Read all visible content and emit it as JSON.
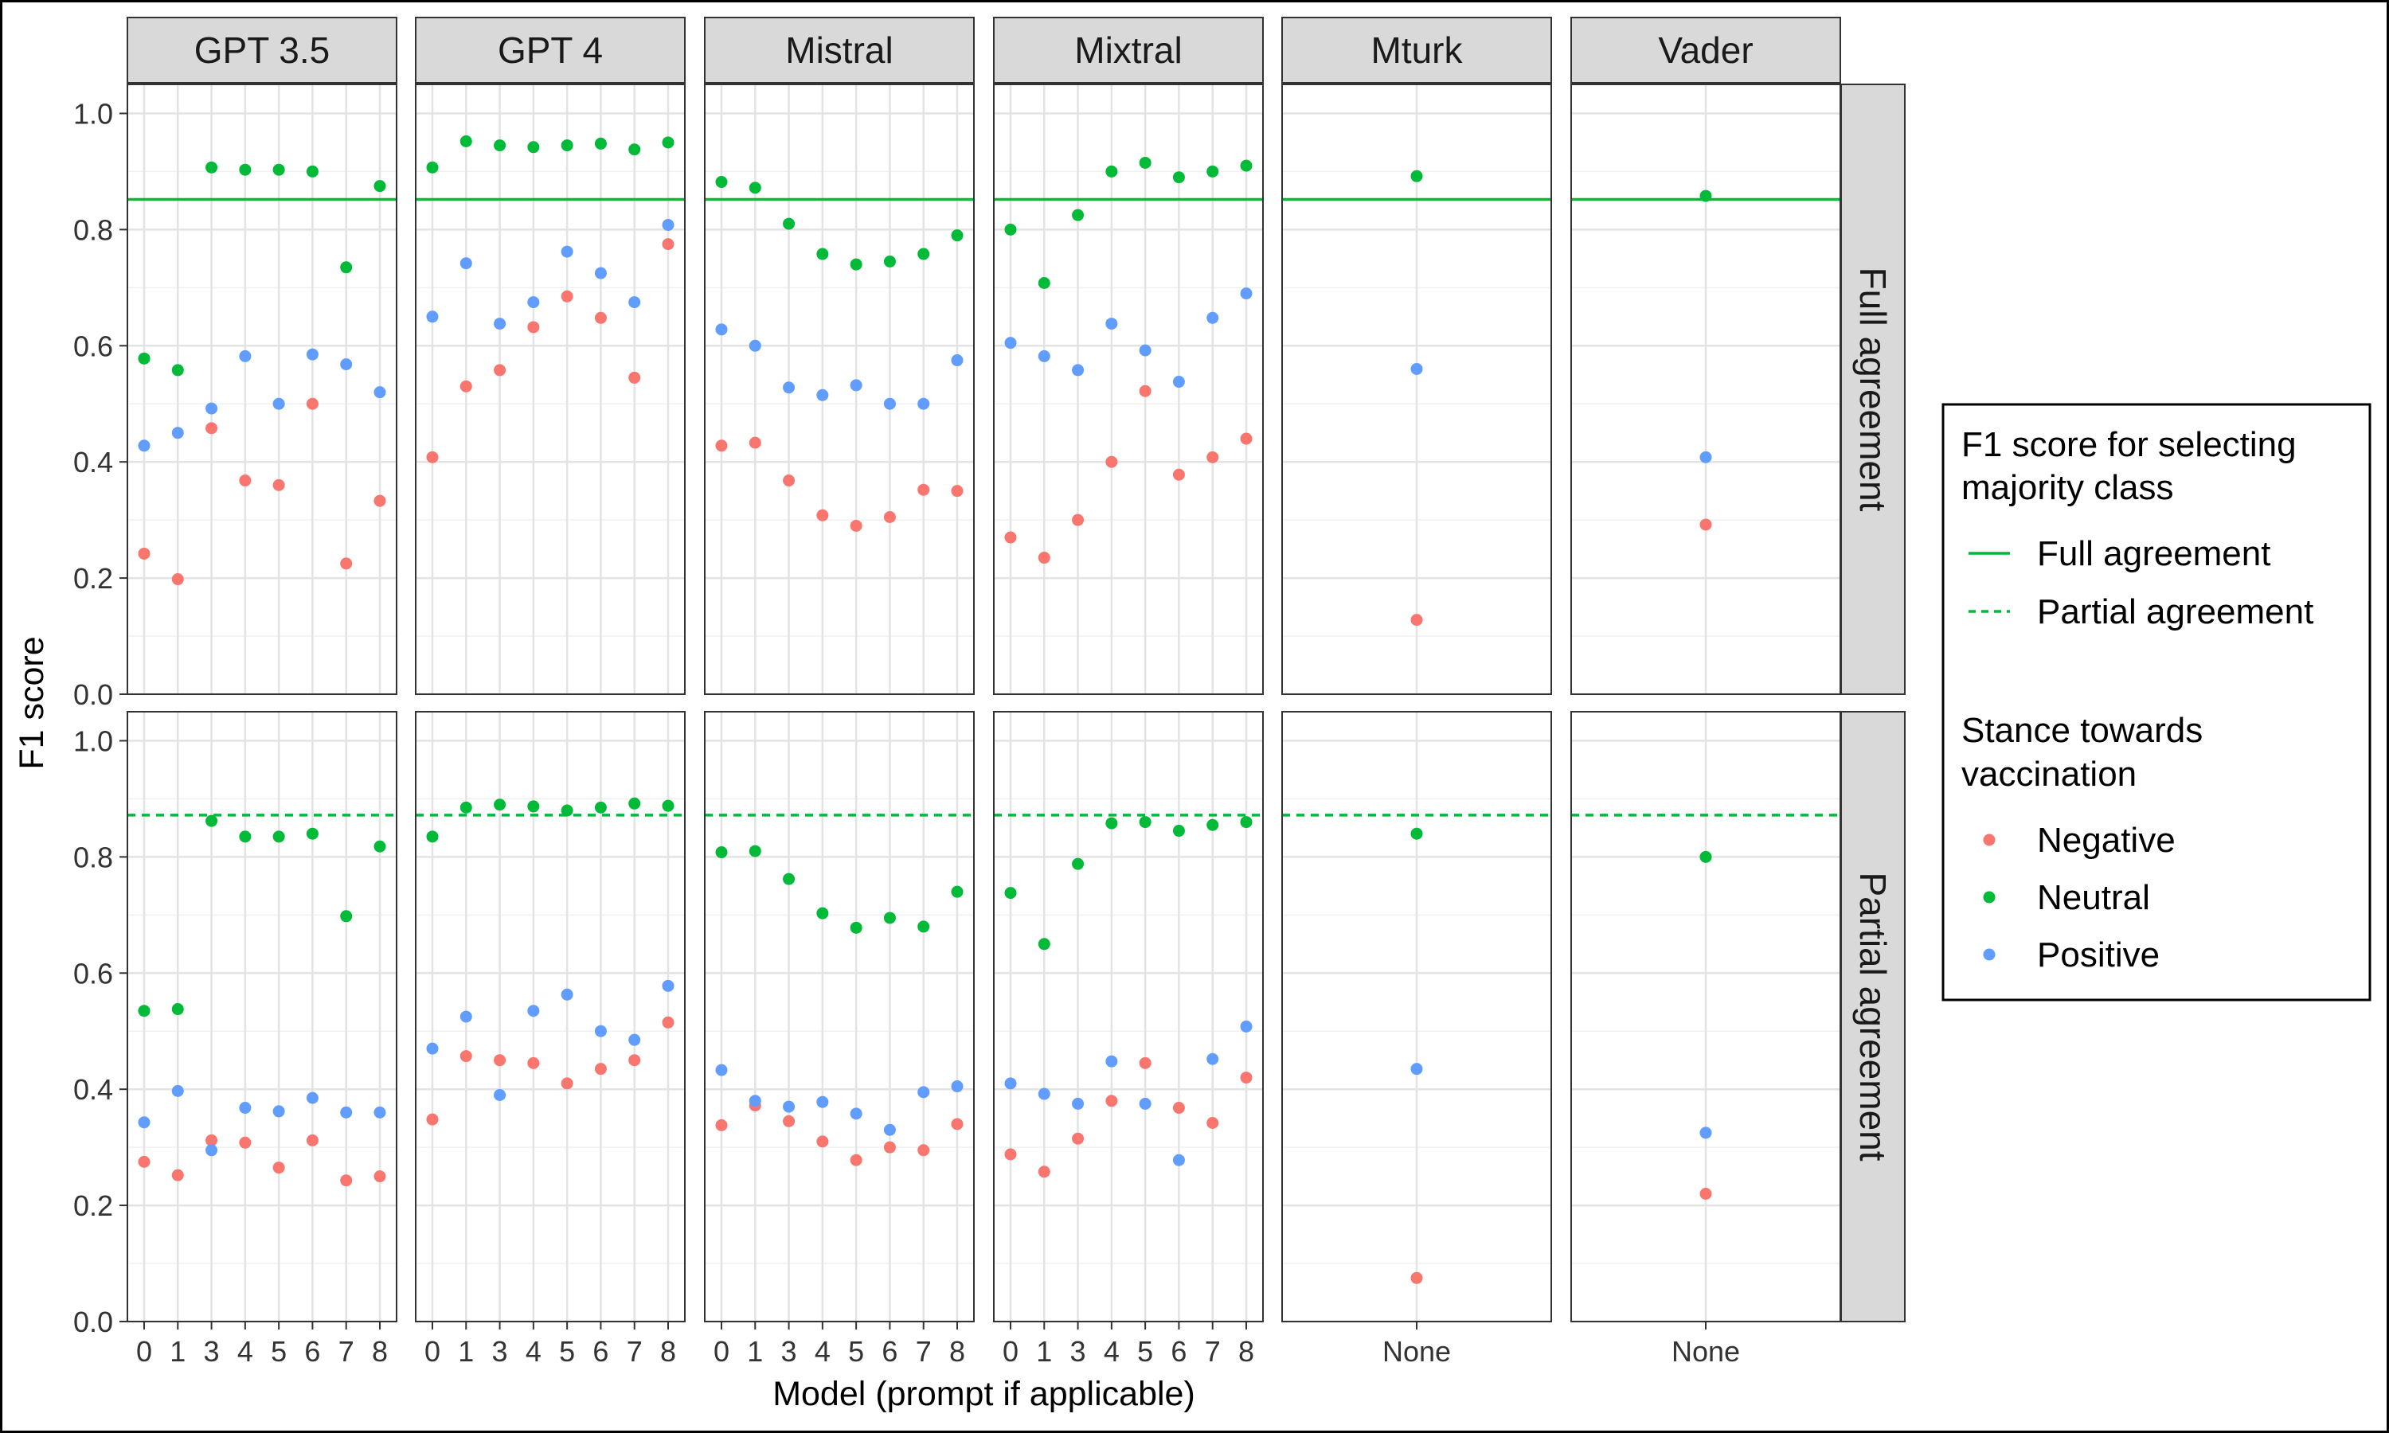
{
  "chart_data": {
    "type": "scatter",
    "xlabel": "Model (prompt if applicable)",
    "ylabel": "F1 score",
    "ylim": [
      0,
      1.05
    ],
    "yticks": [
      "0.0",
      "0.2",
      "0.4",
      "0.6",
      "0.8",
      "1.0"
    ],
    "grid": true,
    "legend_position": "right",
    "panels_x": [
      "GPT 3.5",
      "GPT 4",
      "Mistral",
      "Mixtral",
      "Mturk",
      "Vader"
    ],
    "panels_y": [
      "Full agreement",
      "Partial agreement"
    ],
    "panel_categories": {
      "GPT 3.5": [
        "0",
        "1",
        "3",
        "4",
        "5",
        "6",
        "7",
        "8"
      ],
      "GPT 4": [
        "0",
        "1",
        "3",
        "4",
        "5",
        "6",
        "7",
        "8"
      ],
      "Mistral": [
        "0",
        "1",
        "3",
        "4",
        "5",
        "6",
        "7",
        "8"
      ],
      "Mixtral": [
        "0",
        "1",
        "3",
        "4",
        "5",
        "6",
        "7",
        "8"
      ],
      "Mturk": [
        "None"
      ],
      "Vader": [
        "None"
      ]
    },
    "reference_lines": {
      "Full agreement": 0.852,
      "Partial agreement": 0.872
    },
    "series_colors": {
      "Negative": "#F8766D",
      "Neutral": "#00BA38",
      "Positive": "#619CFF"
    },
    "line_color": "#00BA38",
    "data": {
      "Full agreement": {
        "GPT 3.5": {
          "Negative": [
            0.242,
            0.198,
            0.458,
            0.368,
            0.36,
            0.5,
            0.225,
            0.333
          ],
          "Neutral": [
            0.578,
            0.558,
            0.907,
            0.903,
            0.903,
            0.9,
            0.735,
            0.875
          ],
          "Positive": [
            0.428,
            0.45,
            0.492,
            0.582,
            0.5,
            0.585,
            0.568,
            0.52
          ]
        },
        "GPT 4": {
          "Negative": [
            0.408,
            0.53,
            0.558,
            0.632,
            0.685,
            0.648,
            0.545,
            0.775
          ],
          "Neutral": [
            0.907,
            0.952,
            0.945,
            0.942,
            0.945,
            0.948,
            0.938,
            0.95
          ],
          "Positive": [
            0.65,
            0.742,
            0.638,
            0.675,
            0.762,
            0.725,
            0.675,
            0.808
          ]
        },
        "Mistral": {
          "Negative": [
            0.428,
            0.433,
            0.368,
            0.308,
            0.29,
            0.305,
            0.352,
            0.35
          ],
          "Neutral": [
            0.882,
            0.872,
            0.81,
            0.758,
            0.74,
            0.745,
            0.758,
            0.79
          ],
          "Positive": [
            0.628,
            0.6,
            0.528,
            0.515,
            0.532,
            0.5,
            0.5,
            0.575
          ]
        },
        "Mixtral": {
          "Negative": [
            0.27,
            0.235,
            0.3,
            0.4,
            0.522,
            0.378,
            0.408,
            0.44
          ],
          "Neutral": [
            0.8,
            0.708,
            0.825,
            0.9,
            0.915,
            0.89,
            0.9,
            0.91
          ],
          "Positive": [
            0.605,
            0.582,
            0.558,
            0.638,
            0.592,
            0.538,
            0.648,
            0.69
          ]
        },
        "Mturk": {
          "Negative": [
            0.128
          ],
          "Neutral": [
            0.892
          ],
          "Positive": [
            0.56
          ]
        },
        "Vader": {
          "Negative": [
            0.292
          ],
          "Neutral": [
            0.858
          ],
          "Positive": [
            0.408
          ]
        }
      },
      "Partial agreement": {
        "GPT 3.5": {
          "Negative": [
            0.275,
            0.252,
            0.312,
            0.308,
            0.265,
            0.312,
            0.243,
            0.25
          ],
          "Neutral": [
            0.535,
            0.538,
            0.862,
            0.835,
            0.835,
            0.84,
            0.698,
            0.818
          ],
          "Positive": [
            0.343,
            0.397,
            0.295,
            0.368,
            0.362,
            0.385,
            0.36,
            0.36
          ]
        },
        "GPT 4": {
          "Negative": [
            0.348,
            0.457,
            0.45,
            0.445,
            0.41,
            0.435,
            0.45,
            0.515
          ],
          "Neutral": [
            0.835,
            0.885,
            0.89,
            0.887,
            0.88,
            0.885,
            0.892,
            0.888
          ],
          "Positive": [
            0.47,
            0.525,
            0.39,
            0.535,
            0.563,
            0.5,
            0.485,
            0.578
          ]
        },
        "Mistral": {
          "Negative": [
            0.338,
            0.372,
            0.345,
            0.31,
            0.278,
            0.3,
            0.295,
            0.34
          ],
          "Neutral": [
            0.808,
            0.81,
            0.762,
            0.703,
            0.678,
            0.695,
            0.68,
            0.74
          ],
          "Positive": [
            0.433,
            0.38,
            0.37,
            0.378,
            0.358,
            0.33,
            0.395,
            0.405
          ]
        },
        "Mixtral": {
          "Negative": [
            0.288,
            0.258,
            0.315,
            0.38,
            0.445,
            0.368,
            0.342,
            0.42
          ],
          "Neutral": [
            0.738,
            0.65,
            0.788,
            0.858,
            0.86,
            0.845,
            0.855,
            0.86
          ],
          "Positive": [
            0.41,
            0.392,
            0.375,
            0.448,
            0.375,
            0.278,
            0.452,
            0.508
          ]
        },
        "Mturk": {
          "Negative": [
            0.075
          ],
          "Neutral": [
            0.84
          ],
          "Positive": [
            0.435
          ]
        },
        "Vader": {
          "Negative": [
            0.22
          ],
          "Neutral": [
            0.8
          ],
          "Positive": [
            0.325
          ]
        }
      }
    },
    "legend": {
      "line_title_1": "F1 score for selecting",
      "line_title_2": " majority class",
      "line_entries": [
        "Full agreement",
        "Partial agreement"
      ],
      "point_title_1": "Stance towards",
      "point_title_2": "vaccination",
      "point_entries": [
        "Negative",
        "Neutral",
        "Positive"
      ]
    }
  }
}
